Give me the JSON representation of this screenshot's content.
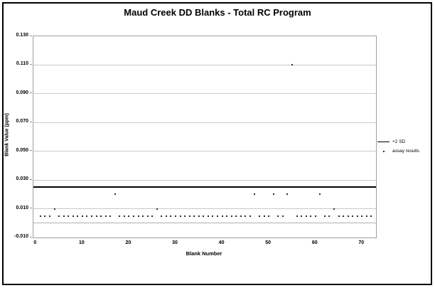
{
  "title": "Maud Creek DD Blanks - Total RC Program",
  "colors": {
    "background": "#ffffff",
    "frame_border": "#000000",
    "plot_border": "#a0a0a0",
    "grid": "#c9c9c9",
    "zero_line": "#b0b0b0",
    "tick_mark": "#8c8c8c",
    "sd_line": "#000000",
    "marker": "#2b2b36"
  },
  "chart_data": {
    "type": "scatter",
    "title": "Maud Creek DD Blanks - Total RC Program",
    "xlabel": "Blank Number",
    "ylabel": "Blank Value (ppm)",
    "xlim": [
      -0.5,
      73
    ],
    "ylim": [
      -0.01,
      0.13
    ],
    "x_ticks": [
      0,
      10,
      20,
      30,
      40,
      50,
      60,
      70
    ],
    "y_ticks": [
      0.13,
      0.11,
      0.09,
      0.07,
      0.05,
      0.03,
      0.01,
      -0.01
    ],
    "y_tick_labels": [
      "0.130",
      "0.110",
      "0.090",
      "0.070",
      "0.050",
      "0.030",
      "0.010",
      "-0.010"
    ],
    "x_axis_value": 0.0,
    "grid": "horizontal",
    "legend_position": "right",
    "series": [
      {
        "name": "+2 SD",
        "type": "hline",
        "value": 0.025,
        "color": "#000000"
      },
      {
        "name": "assay results",
        "type": "scatter",
        "color": "#2b2b36",
        "points": [
          [
            1,
            0.005
          ],
          [
            2,
            0.005
          ],
          [
            3,
            0.005
          ],
          [
            4,
            0.01
          ],
          [
            5,
            0.005
          ],
          [
            6,
            0.005
          ],
          [
            7,
            0.005
          ],
          [
            8,
            0.005
          ],
          [
            9,
            0.005
          ],
          [
            10,
            0.005
          ],
          [
            11,
            0.005
          ],
          [
            12,
            0.005
          ],
          [
            13,
            0.005
          ],
          [
            14,
            0.005
          ],
          [
            15,
            0.005
          ],
          [
            16,
            0.005
          ],
          [
            17,
            0.02
          ],
          [
            18,
            0.005
          ],
          [
            19,
            0.005
          ],
          [
            20,
            0.005
          ],
          [
            21,
            0.005
          ],
          [
            22,
            0.005
          ],
          [
            23,
            0.005
          ],
          [
            24,
            0.005
          ],
          [
            25,
            0.005
          ],
          [
            26,
            0.01
          ],
          [
            27,
            0.005
          ],
          [
            28,
            0.005
          ],
          [
            29,
            0.005
          ],
          [
            30,
            0.005
          ],
          [
            31,
            0.005
          ],
          [
            32,
            0.005
          ],
          [
            33,
            0.005
          ],
          [
            34,
            0.005
          ],
          [
            35,
            0.005
          ],
          [
            36,
            0.005
          ],
          [
            37,
            0.005
          ],
          [
            38,
            0.005
          ],
          [
            39,
            0.005
          ],
          [
            40,
            0.005
          ],
          [
            41,
            0.005
          ],
          [
            42,
            0.005
          ],
          [
            43,
            0.005
          ],
          [
            44,
            0.005
          ],
          [
            45,
            0.005
          ],
          [
            46,
            0.005
          ],
          [
            47,
            0.02
          ],
          [
            48,
            0.005
          ],
          [
            49,
            0.005
          ],
          [
            50,
            0.005
          ],
          [
            51,
            0.02
          ],
          [
            52,
            0.005
          ],
          [
            53,
            0.005
          ],
          [
            54,
            0.02
          ],
          [
            55,
            0.11
          ],
          [
            56,
            0.005
          ],
          [
            57,
            0.005
          ],
          [
            58,
            0.005
          ],
          [
            59,
            0.005
          ],
          [
            60,
            0.005
          ],
          [
            61,
            0.02
          ],
          [
            62,
            0.005
          ],
          [
            63,
            0.005
          ],
          [
            64,
            0.01
          ],
          [
            65,
            0.005
          ],
          [
            66,
            0.005
          ],
          [
            67,
            0.005
          ],
          [
            68,
            0.005
          ],
          [
            69,
            0.005
          ],
          [
            70,
            0.005
          ],
          [
            71,
            0.005
          ],
          [
            72,
            0.005
          ]
        ]
      }
    ]
  }
}
